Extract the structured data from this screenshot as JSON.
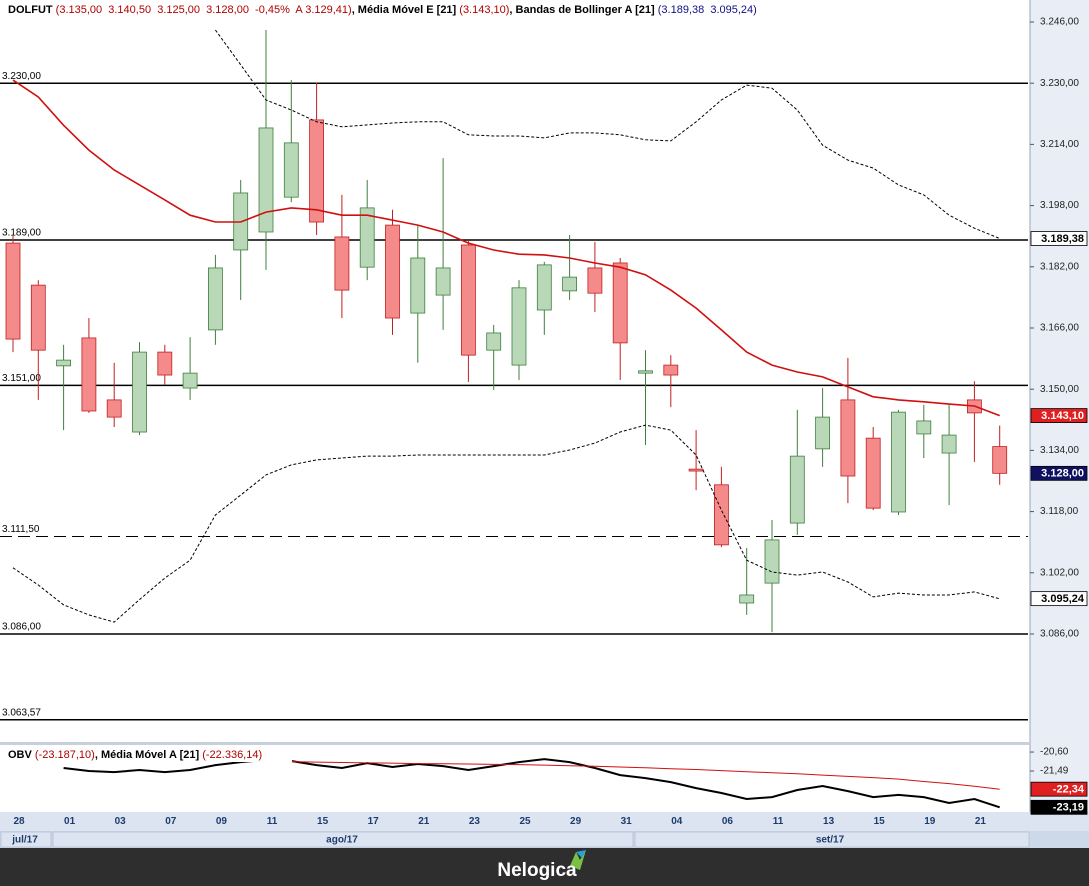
{
  "chart_data": [
    {
      "type": "candlestick",
      "header": [
        {
          "text": "DOLFUT",
          "color": "#000000",
          "bold": true
        },
        {
          "text": " (3.135,00  3.140,50  3.125,00  3.128,00  -0,45%  A 3.129,41)",
          "color": "#b00000",
          "bold": false
        },
        {
          "text": ", Média Móvel E [21]",
          "color": "#000000",
          "bold": true
        },
        {
          "text": " (3.143,10)",
          "color": "#b00000",
          "bold": false
        },
        {
          "text": ", Bandas de Bollinger A [21]",
          "color": "#000000",
          "bold": true
        },
        {
          "text": " (3.189,38  3.095,24)",
          "color": "#101080",
          "bold": false
        }
      ],
      "categories": [
        "28",
        null,
        "01",
        null,
        "03",
        null,
        "07",
        null,
        "09",
        null,
        "11",
        null,
        "15",
        null,
        "17",
        null,
        "21",
        null,
        "23",
        null,
        "25",
        null,
        "29",
        null,
        "31",
        null,
        "04",
        null,
        "06",
        null,
        "11",
        null,
        "13",
        null,
        "15",
        null,
        "19",
        null,
        "21",
        null
      ],
      "months": [
        "jul/17",
        "ago/17",
        "set/17"
      ],
      "open": [
        3188.2,
        3177.2,
        3156.1,
        3163.4,
        3147.2,
        3138.8,
        3159.7,
        3150.3,
        3165.5,
        3186.4,
        3191.1,
        3200.2,
        3220.4,
        3189.8,
        3181.9,
        3192.9,
        3169.9,
        3174.6,
        3187.7,
        3160.2,
        3156.3,
        3170.7,
        3175.7,
        3181.7,
        3183.0,
        3154.2,
        3156.3,
        3129.1,
        3125.0,
        3094.1,
        3099.3,
        3115.0,
        3134.4,
        3147.2,
        3137.2,
        3117.9,
        3138.3,
        3133.3,
        3147.2,
        3135.0
      ],
      "high": [
        3190.3,
        3178.5,
        3161.6,
        3168.6,
        3156.9,
        3162.3,
        3161.6,
        3163.6,
        3185.1,
        3204.7,
        3243.9,
        3230.8,
        3230.1,
        3200.8,
        3204.7,
        3196.9,
        3192.9,
        3210.4,
        3189.0,
        3166.8,
        3178.5,
        3183.3,
        3190.3,
        3188.5,
        3184.3,
        3160.2,
        3158.9,
        3139.3,
        3129.7,
        3108.5,
        3115.8,
        3144.6,
        3150.3,
        3158.2,
        3140.1,
        3144.6,
        3145.9,
        3145.9,
        3152.1,
        3140.5
      ],
      "low": [
        3159.7,
        3147.2,
        3139.3,
        3143.8,
        3140.1,
        3138.0,
        3151.1,
        3147.2,
        3161.6,
        3173.3,
        3181.2,
        3198.9,
        3190.3,
        3168.6,
        3178.5,
        3164.2,
        3156.9,
        3165.5,
        3151.9,
        3149.8,
        3152.4,
        3164.2,
        3173.3,
        3170.2,
        3152.4,
        3135.4,
        3145.3,
        3123.6,
        3108.7,
        3091.0,
        3086.5,
        3111.9,
        3129.7,
        3120.2,
        3118.4,
        3117.1,
        3132.0,
        3119.7,
        3131.0,
        3125.0
      ],
      "close": [
        3163.1,
        3160.2,
        3157.6,
        3144.3,
        3142.7,
        3159.7,
        3153.7,
        3154.2,
        3181.7,
        3201.3,
        3218.3,
        3214.4,
        3193.7,
        3175.9,
        3197.4,
        3168.6,
        3184.3,
        3181.7,
        3158.9,
        3164.7,
        3176.5,
        3182.5,
        3179.3,
        3175.1,
        3162.1,
        3154.8,
        3153.7,
        3128.6,
        3109.3,
        3096.2,
        3110.6,
        3132.5,
        3142.7,
        3127.3,
        3118.9,
        3144.0,
        3141.7,
        3138.0,
        3143.8,
        3128.0
      ],
      "up_color": "#b8d8b8",
      "up_border": "#3f7f3f",
      "down_color": "#f58a8a",
      "down_border": "#c02020",
      "series": [
        {
          "name": "Média Móvel E [21]",
          "color": "#d01010",
          "dashed": false,
          "values": [
            3230.8,
            3226.4,
            3219,
            3212.5,
            3207.3,
            3203.4,
            3199.5,
            3195.5,
            3193.7,
            3193.7,
            3196.3,
            3197.4,
            3196.9,
            3195.5,
            3195.5,
            3194.2,
            3192.9,
            3191.1,
            3188.2,
            3186.4,
            3185.3,
            3185.1,
            3184.3,
            3183.0,
            3181.9,
            3179.9,
            3175.9,
            3171.2,
            3165.5,
            3159.7,
            3156.3,
            3154.5,
            3153.2,
            3150.6,
            3148.0,
            3147.2,
            3146.7,
            3146.1,
            3145.6,
            3143.1
          ]
        },
        {
          "name": "Bandas de Bollinger A [21]",
          "color": "#000000",
          "dashed": true,
          "values": [
            null,
            null,
            null,
            null,
            null,
            null,
            null,
            null,
            3243.9,
            3234.8,
            3225.6,
            3223.0,
            3219.9,
            3218.6,
            3219.1,
            3219.6,
            3219.9,
            3219.9,
            3216.5,
            3216.2,
            3216.2,
            3215.7,
            3217.0,
            3217.0,
            3216.5,
            3215.2,
            3214.9,
            3219.9,
            3225.6,
            3229.5,
            3228.7,
            3223.0,
            3213.8,
            3209.9,
            3207.8,
            3203.4,
            3200.8,
            3195.5,
            3192.1,
            3189.4
          ]
        },
        {
          "name": "Bandas de Bollinger A [21]",
          "color": "#000000",
          "dashed": true,
          "values": [
            3103.3,
            3098.8,
            3093.6,
            3091.0,
            3089.1,
            3095.0,
            3100.6,
            3105.3,
            3117.1,
            3122.3,
            3127.6,
            3130.2,
            3131.5,
            3132.0,
            3132.5,
            3132.5,
            3132.8,
            3132.8,
            3132.8,
            3132.8,
            3132.8,
            3132.8,
            3134.1,
            3135.9,
            3138.8,
            3140.6,
            3139.3,
            3132.8,
            3118.4,
            3105.3,
            3102.2,
            3101.4,
            3102.2,
            3099.6,
            3095.7,
            3096.7,
            3096.2,
            3096.2,
            3097.0,
            3095.2
          ]
        }
      ],
      "ylim": [
        3057.76,
        3251.75
      ],
      "yticks": [
        {
          "value": 3246,
          "label": "3.246,00"
        },
        {
          "value": 3230,
          "label": "3.230,00"
        },
        {
          "value": 3214,
          "label": "3.214,00"
        },
        {
          "value": 3198,
          "label": "3.198,00"
        },
        {
          "value": 3182,
          "label": "3.182,00"
        },
        {
          "value": 3166,
          "label": "3.166,00"
        },
        {
          "value": 3150,
          "label": "3.150,00"
        },
        {
          "value": 3134,
          "label": "3.134,00"
        },
        {
          "value": 3118,
          "label": "3.118,00"
        },
        {
          "value": 3102,
          "label": "3.102,00"
        },
        {
          "value": 3086,
          "label": "3.086,00"
        }
      ],
      "price_lines": [
        {
          "value": 3230,
          "label": "3.230,00",
          "dashed": false
        },
        {
          "value": 3189,
          "label": "3.189,00",
          "dashed": false
        },
        {
          "value": 3151,
          "label": "3.151,00",
          "dashed": false
        },
        {
          "value": 3111.5,
          "label": "3.111,50",
          "dashed": true
        },
        {
          "value": 3086,
          "label": "3.086,00",
          "dashed": false
        },
        {
          "value": 3063.57,
          "label": "3.063,57",
          "dashed": false
        }
      ],
      "value_tags": [
        {
          "value": 3189.38,
          "label": "3.189,38",
          "background": "#ffffff",
          "text_color": "#000000"
        },
        {
          "value": 3143.1,
          "label": "3.143,10",
          "background": "#e02020",
          "text_color": "#ffffff"
        },
        {
          "value": 3128.0,
          "label": "3.128,00",
          "background": "#101060",
          "text_color": "#ffffff"
        },
        {
          "value": 3095.24,
          "label": "3.095,24",
          "background": "#ffffff",
          "text_color": "#000000"
        }
      ]
    },
    {
      "type": "line",
      "header": [
        {
          "text": "OBV",
          "color": "#000000",
          "bold": true
        },
        {
          "text": " (-23.187,10)",
          "color": "#b00000",
          "bold": false
        },
        {
          "text": ", Média Móvel A [21]",
          "color": "#000000",
          "bold": true
        },
        {
          "text": " (-22.336,14)",
          "color": "#b00000",
          "bold": false
        }
      ],
      "series": [
        {
          "name": "OBV",
          "color": "#000000",
          "width": 2,
          "values": [
            null,
            null,
            -21.35,
            -21.49,
            -21.54,
            -21.44,
            -21.54,
            -21.44,
            -21.21,
            -21.07,
            -20.97,
            -21.02,
            -21.21,
            -21.35,
            -21.12,
            -21.3,
            -21.16,
            -21.26,
            -21.44,
            -21.26,
            -21.07,
            -20.93,
            -21.07,
            -21.35,
            -21.68,
            -21.82,
            -22.01,
            -22.29,
            -22.52,
            -22.8,
            -22.71,
            -22.38,
            -22.19,
            -22.43,
            -22.71,
            -22.61,
            -22.71,
            -22.99,
            -22.8,
            -23.19
          ]
        },
        {
          "name": "Média Móvel A [21]",
          "color": "#d01010",
          "width": 1,
          "values": [
            null,
            null,
            null,
            null,
            null,
            null,
            null,
            null,
            null,
            null,
            null,
            -21.05,
            -21.07,
            -21.09,
            -21.11,
            -21.12,
            -21.14,
            -21.15,
            -21.16,
            -21.18,
            -21.19,
            -21.21,
            -21.24,
            -21.27,
            -21.3,
            -21.34,
            -21.38,
            -21.42,
            -21.47,
            -21.52,
            -21.57,
            -21.62,
            -21.68,
            -21.74,
            -21.8,
            -21.87,
            -21.98,
            -22.08,
            -22.2,
            -22.34
          ]
        }
      ],
      "ylim": [
        -23.41,
        -20.27
      ],
      "yticks": [
        {
          "value": -20.6,
          "label": "-20,60"
        },
        {
          "value": -21.49,
          "label": "-21,49"
        }
      ],
      "value_tags": [
        {
          "value": -22.34,
          "label": "-22,34",
          "background": "#e02020",
          "text_color": "#ffffff"
        },
        {
          "value": -23.19,
          "label": "-23,19",
          "background": "#000000",
          "text_color": "#ffffff"
        }
      ]
    }
  ],
  "footer": {
    "brand": "Nelogica"
  }
}
